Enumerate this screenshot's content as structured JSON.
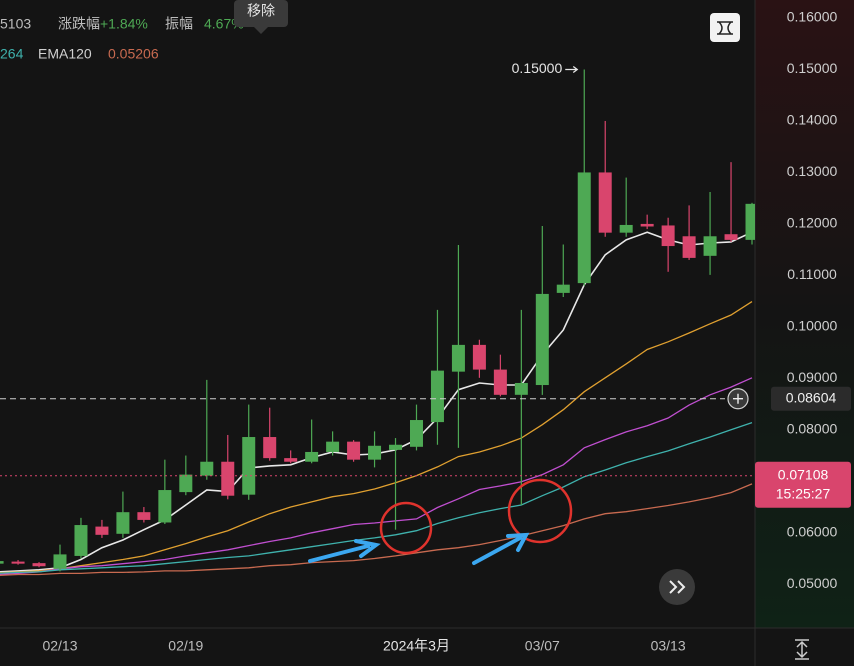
{
  "chart_data": {
    "type": "candlestick",
    "tooltip": "移除",
    "legend": {
      "row1": [
        "5103",
        "涨跌幅",
        "+1.84%",
        "振幅",
        "4.67%"
      ],
      "row2": [
        "264"
      ],
      "ema120_value": 0.05206
    },
    "categories": [
      null,
      null,
      null,
      "02/13",
      null,
      null,
      null,
      null,
      null,
      "02/19",
      null,
      null,
      null,
      null,
      null,
      null,
      null,
      null,
      null,
      null,
      "2024年3月",
      null,
      null,
      null,
      null,
      null,
      "03/07",
      null,
      null,
      null,
      null,
      null,
      "03/13",
      null,
      null,
      null,
      null
    ],
    "open": [
      0.054,
      0.0544,
      0.0541,
      0.053,
      0.0555,
      0.0612,
      0.0598,
      0.064,
      0.062,
      0.0679,
      0.0711,
      0.0738,
      0.0674,
      0.0786,
      0.0745,
      0.0738,
      0.0757,
      0.0777,
      0.0742,
      0.0761,
      0.0767,
      0.0815,
      0.0913,
      0.0965,
      0.0917,
      0.0868,
      0.0887,
      0.1066,
      0.1085,
      0.13,
      0.1183,
      0.12,
      0.1197,
      0.1176,
      0.1138,
      0.118,
      0.1169
    ],
    "high": [
      0.0548,
      0.0547,
      0.0543,
      0.0577,
      0.0629,
      0.0625,
      0.068,
      0.065,
      0.0742,
      0.075,
      0.0897,
      0.079,
      0.0849,
      0.0843,
      0.076,
      0.082,
      0.0797,
      0.078,
      0.0797,
      0.0784,
      0.0849,
      0.1033,
      0.1159,
      0.0975,
      0.0946,
      0.1033,
      0.1196,
      0.116,
      0.15,
      0.14,
      0.129,
      0.1218,
      0.1212,
      0.1236,
      0.1262,
      0.132,
      0.1241
    ],
    "low": [
      0.0538,
      0.0538,
      0.0533,
      0.0525,
      0.055,
      0.059,
      0.059,
      0.062,
      0.0617,
      0.0673,
      0.0703,
      0.0665,
      0.0664,
      0.074,
      0.0735,
      0.0735,
      0.075,
      0.0738,
      0.0727,
      0.0606,
      0.076,
      0.0771,
      0.0765,
      0.0901,
      0.0865,
      0.0654,
      0.0868,
      0.1058,
      0.108,
      0.1175,
      0.1175,
      0.119,
      0.1107,
      0.113,
      0.1101,
      0.1165,
      0.116
    ],
    "close": [
      0.0545,
      0.054,
      0.0535,
      0.0558,
      0.0615,
      0.0596,
      0.064,
      0.0625,
      0.0683,
      0.0713,
      0.0738,
      0.0672,
      0.0786,
      0.0745,
      0.0738,
      0.0757,
      0.0777,
      0.0742,
      0.0769,
      0.0771,
      0.0819,
      0.0915,
      0.0965,
      0.0917,
      0.0868,
      0.0891,
      0.1064,
      0.1082,
      0.13,
      0.1183,
      0.1198,
      0.1195,
      0.1157,
      0.1134,
      0.1176,
      0.1169,
      0.1239
    ],
    "up_color": "#4ea954",
    "down_color": "#d9456d",
    "overlays": [
      {
        "color": "#e8e8e8",
        "values": [
          0.0524,
          0.0526,
          0.0528,
          0.0532,
          0.0548,
          0.0571,
          0.0586,
          0.0606,
          0.0625,
          0.0654,
          0.0683,
          0.068,
          0.0726,
          0.073,
          0.0732,
          0.0746,
          0.0757,
          0.0751,
          0.0753,
          0.0761,
          0.0781,
          0.0823,
          0.0878,
          0.0891,
          0.0887,
          0.0887,
          0.0946,
          0.0994,
          0.1082,
          0.114,
          0.1169,
          0.1184,
          0.1169,
          0.1159,
          0.1163,
          0.1165,
          0.1184
        ]
      },
      {
        "color": "#e0a030",
        "values": [
          0.0522,
          0.0524,
          0.0526,
          0.053,
          0.0536,
          0.0542,
          0.0548,
          0.0555,
          0.0567,
          0.0579,
          0.0592,
          0.0604,
          0.0621,
          0.0637,
          0.065,
          0.066,
          0.067,
          0.0676,
          0.0685,
          0.0697,
          0.0711,
          0.0728,
          0.0748,
          0.0757,
          0.0769,
          0.0784,
          0.081,
          0.0839,
          0.0874,
          0.0901,
          0.0928,
          0.0956,
          0.0971,
          0.0988,
          0.1006,
          0.1023,
          0.1049
        ]
      },
      {
        "color": "#c04fd0",
        "values": [
          0.0519,
          0.0521,
          0.0524,
          0.053,
          0.0534,
          0.0536,
          0.054,
          0.0544,
          0.0548,
          0.0555,
          0.0561,
          0.0567,
          0.0575,
          0.0583,
          0.059,
          0.06,
          0.0608,
          0.0616,
          0.0619,
          0.0623,
          0.0627,
          0.0649,
          0.0666,
          0.0684,
          0.0691,
          0.0699,
          0.0713,
          0.0732,
          0.0765,
          0.0781,
          0.0796,
          0.0808,
          0.0823,
          0.0848,
          0.0868,
          0.0883,
          0.0901
        ]
      },
      {
        "color": "#3fb2ad",
        "values": [
          0.0521,
          0.0523,
          0.0524,
          0.0528,
          0.053,
          0.0532,
          0.0534,
          0.0536,
          0.054,
          0.0544,
          0.0548,
          0.0552,
          0.0555,
          0.0561,
          0.0567,
          0.0573,
          0.0579,
          0.0585,
          0.059,
          0.0596,
          0.0604,
          0.0618,
          0.0629,
          0.0639,
          0.0647,
          0.0654,
          0.0672,
          0.0689,
          0.0709,
          0.0722,
          0.0736,
          0.0748,
          0.0759,
          0.0773,
          0.0786,
          0.08,
          0.0814
        ]
      },
      {
        "name": "EMA120",
        "color": "#c86a50",
        "values": [
          0.0517,
          0.0519,
          0.0519,
          0.0521,
          0.0521,
          0.0523,
          0.0523,
          0.0524,
          0.0526,
          0.0526,
          0.0528,
          0.053,
          0.0532,
          0.0536,
          0.0538,
          0.0542,
          0.0544,
          0.0546,
          0.055,
          0.0555,
          0.0561,
          0.0567,
          0.0571,
          0.0577,
          0.0585,
          0.0594,
          0.0604,
          0.0614,
          0.0627,
          0.0637,
          0.0641,
          0.0647,
          0.0653,
          0.066,
          0.0668,
          0.0678,
          0.0695
        ]
      }
    ],
    "high_marker": {
      "value": 0.15,
      "label": "0.15000"
    },
    "last_price": 0.08604,
    "current_price": 0.07108,
    "countdown": "15:25:27",
    "ylim": [
      0.0415,
      0.1635
    ],
    "yticks": [
      {
        "value": 0.16,
        "label": "0.16000"
      },
      {
        "value": 0.15,
        "label": "0.15000"
      },
      {
        "value": 0.14,
        "label": "0.14000"
      },
      {
        "value": 0.13,
        "label": "0.13000"
      },
      {
        "value": 0.12,
        "label": "0.12000"
      },
      {
        "value": 0.11,
        "label": "0.11000"
      },
      {
        "value": 0.1,
        "label": "0.10000"
      },
      {
        "value": 0.09,
        "label": "0.09000"
      },
      {
        "value": 0.08,
        "label": "0.08000"
      },
      {
        "value": 0.06,
        "label": "0.06000"
      },
      {
        "value": 0.05,
        "label": "0.05000"
      }
    ]
  }
}
